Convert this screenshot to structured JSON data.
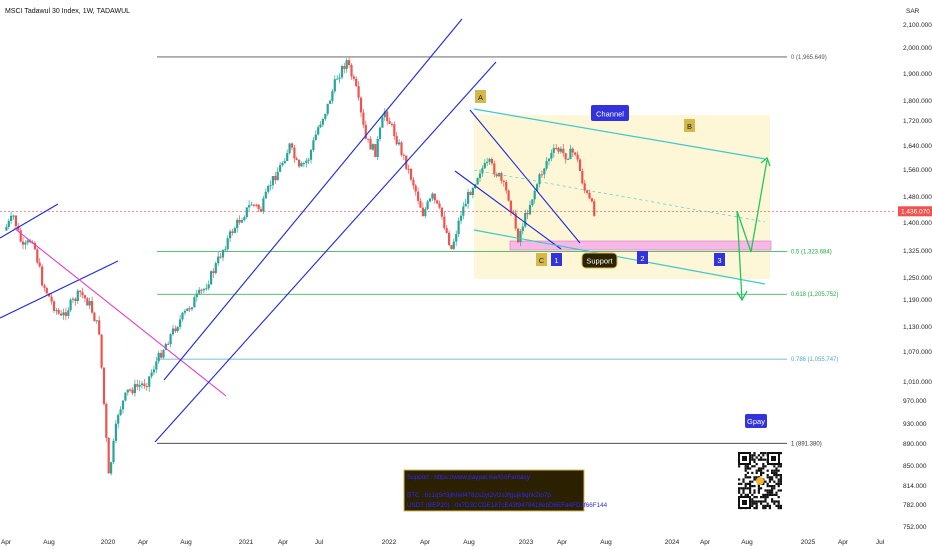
{
  "chart_data": {
    "type": "candlestick",
    "title": "MSCI Tadawul 30 Index, 1W, TADAWUL",
    "currency": "SAR",
    "y_ticks": [
      752,
      782,
      814,
      850,
      890,
      930,
      970,
      1010,
      1070,
      1130,
      1190,
      1250,
      1325,
      1400,
      1480,
      1560,
      1640,
      1720,
      1800,
      1900,
      2000,
      2100
    ],
    "y_tick_labels": [
      "752.000",
      "782.000",
      "814.000",
      "850.000",
      "890.000",
      "930.000",
      "970.000",
      "1,010.000",
      "1,070.000",
      "1,130.000",
      "1,190.000",
      "1,250.000",
      "1,325.000",
      "1,400.000",
      "1,480.000",
      "1,560.000",
      "1,640.000",
      "1,720.000",
      "1,800.000",
      "1,900.000",
      "2,000.000",
      "2,100.000"
    ],
    "x_labels": [
      "Apr",
      "Aug",
      "2020",
      "Apr",
      "Aug",
      "2021",
      "Apr",
      "Jul",
      "2022",
      "Apr",
      "Aug",
      "2023",
      "Apr",
      "Aug",
      "2024",
      "Apr",
      "Aug",
      "2025",
      "Apr",
      "Jul"
    ],
    "last_price": 1436,
    "last_price_label": "1,436.070",
    "fib_levels": [
      {
        "label": "0 (1,965.649)",
        "value": 1965.649,
        "color": "#555555"
      },
      {
        "label": "0.5 (1,323.684)",
        "value": 1323.684,
        "color": "#22aa44"
      },
      {
        "label": "0.618 (1,205.752)",
        "value": 1205.752,
        "color": "#22aa44"
      },
      {
        "label": "0.786 (1,055.747)",
        "value": 1055.747,
        "color": "#4aa8d8"
      },
      {
        "label": "1 (891.380)",
        "value": 891.38,
        "color": "#333333"
      }
    ],
    "price_path": [
      {
        "date": "2019-04",
        "price": 1380
      },
      {
        "date": "2019-05",
        "price": 1420
      },
      {
        "date": "2019-06",
        "price": 1330
      },
      {
        "date": "2019-07",
        "price": 1360
      },
      {
        "date": "2019-08",
        "price": 1240
      },
      {
        "date": "2019-09",
        "price": 1185
      },
      {
        "date": "2019-10",
        "price": 1150
      },
      {
        "date": "2019-11",
        "price": 1180
      },
      {
        "date": "2019-12",
        "price": 1210
      },
      {
        "date": "2020-01",
        "price": 1180
      },
      {
        "date": "2020-02",
        "price": 1120
      },
      {
        "date": "2020-03",
        "price": 830
      },
      {
        "date": "2020-04",
        "price": 950
      },
      {
        "date": "2020-05",
        "price": 990
      },
      {
        "date": "2020-06",
        "price": 1000
      },
      {
        "date": "2020-07",
        "price": 1010
      },
      {
        "date": "2020-08",
        "price": 1050
      },
      {
        "date": "2020-09",
        "price": 1090
      },
      {
        "date": "2020-10",
        "price": 1130
      },
      {
        "date": "2020-11",
        "price": 1160
      },
      {
        "date": "2020-12",
        "price": 1190
      },
      {
        "date": "2021-01",
        "price": 1220
      },
      {
        "date": "2021-02",
        "price": 1270
      },
      {
        "date": "2021-03",
        "price": 1330
      },
      {
        "date": "2021-04",
        "price": 1380
      },
      {
        "date": "2021-05",
        "price": 1420
      },
      {
        "date": "2021-06",
        "price": 1460
      },
      {
        "date": "2021-07",
        "price": 1440
      },
      {
        "date": "2021-08",
        "price": 1520
      },
      {
        "date": "2021-09",
        "price": 1570
      },
      {
        "date": "2021-10",
        "price": 1640
      },
      {
        "date": "2021-11",
        "price": 1560
      },
      {
        "date": "2021-12",
        "price": 1600
      },
      {
        "date": "2022-01",
        "price": 1700
      },
      {
        "date": "2022-02",
        "price": 1780
      },
      {
        "date": "2022-03",
        "price": 1890
      },
      {
        "date": "2022-04",
        "price": 1950
      },
      {
        "date": "2022-05",
        "price": 1840
      },
      {
        "date": "2022-06",
        "price": 1660
      },
      {
        "date": "2022-07",
        "price": 1620
      },
      {
        "date": "2022-08",
        "price": 1760
      },
      {
        "date": "2022-09",
        "price": 1680
      },
      {
        "date": "2022-10",
        "price": 1600
      },
      {
        "date": "2022-11",
        "price": 1520
      },
      {
        "date": "2022-12",
        "price": 1430
      },
      {
        "date": "2023-01",
        "price": 1480
      },
      {
        "date": "2023-02",
        "price": 1420
      },
      {
        "date": "2023-03",
        "price": 1330
      },
      {
        "date": "2023-04",
        "price": 1430
      },
      {
        "date": "2023-05",
        "price": 1500
      },
      {
        "date": "2023-06",
        "price": 1560
      },
      {
        "date": "2023-07",
        "price": 1580
      },
      {
        "date": "2023-08",
        "price": 1540
      },
      {
        "date": "2023-09",
        "price": 1480
      },
      {
        "date": "2023-10",
        "price": 1360
      },
      {
        "date": "2023-11",
        "price": 1440
      },
      {
        "date": "2023-12",
        "price": 1520
      },
      {
        "date": "2024-01",
        "price": 1590
      },
      {
        "date": "2024-02",
        "price": 1630
      },
      {
        "date": "2024-03",
        "price": 1610
      },
      {
        "date": "2024-04",
        "price": 1620
      },
      {
        "date": "2024-05",
        "price": 1500
      },
      {
        "date": "2024-06",
        "price": 1436
      }
    ],
    "annotations": {
      "channel": "Channel",
      "support": "Support",
      "gpay": "Gpay",
      "wave_a": "A",
      "wave_b": "B",
      "wave_c": "C",
      "wave_1": "1",
      "wave_2": "2",
      "wave_3": "3"
    },
    "donation": {
      "line1": "Support : https://www.paypal.me/GoFantasy",
      "line2": "BTC : bc1q5rf3jlhhel4782s2yt2vf2s3fgujk9qnk2to7p",
      "line3": "USDT (BEP20) : 0x7D3CCDE187cE43f9478418ebD6EFa4FD2f66F144"
    },
    "colors": {
      "up": "#26a69a",
      "down": "#ef5350",
      "trendline": "#1c27e0",
      "channel": "#3cc8c8",
      "magenta": "#e040c8",
      "fib_green": "#22aa44",
      "fib_blue": "#4aa8d8",
      "highlight_zone": "#fdf7d8",
      "support_zone": "#f4b9e4",
      "label_box": "#3333dd",
      "wave_label_bg": "#d4b84a",
      "last_price_bg": "#ef5350"
    }
  }
}
